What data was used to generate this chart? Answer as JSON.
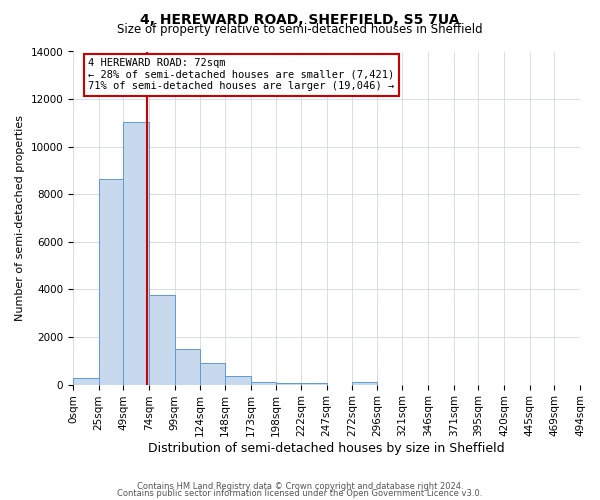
{
  "title": "4, HEREWARD ROAD, SHEFFIELD, S5 7UA",
  "subtitle": "Size of property relative to semi-detached houses in Sheffield",
  "xlabel": "Distribution of semi-detached houses by size in Sheffield",
  "ylabel": "Number of semi-detached properties",
  "footnote1": "Contains HM Land Registry data © Crown copyright and database right 2024.",
  "footnote2": "Contains public sector information licensed under the Open Government Licence v3.0.",
  "bar_color": "#c8d9ed",
  "bar_edge_color": "#5b9bd5",
  "grid_color": "#d0d8e4",
  "background_color": "#ffffff",
  "bin_edges": [
    0,
    25,
    49,
    74,
    99,
    124,
    148,
    173,
    198,
    222,
    247,
    272,
    296,
    321,
    346,
    371,
    395,
    420,
    445,
    469,
    494
  ],
  "bin_labels": [
    "0sqm",
    "25sqm",
    "49sqm",
    "74sqm",
    "99sqm",
    "124sqm",
    "148sqm",
    "173sqm",
    "198sqm",
    "222sqm",
    "247sqm",
    "272sqm",
    "296sqm",
    "321sqm",
    "346sqm",
    "371sqm",
    "395sqm",
    "420sqm",
    "445sqm",
    "469sqm",
    "494sqm"
  ],
  "bar_heights": [
    270,
    8650,
    11050,
    3750,
    1480,
    900,
    350,
    130,
    50,
    70,
    0,
    90,
    0,
    0,
    0,
    0,
    0,
    0,
    0,
    0
  ],
  "ylim": [
    0,
    14000
  ],
  "yticks": [
    0,
    2000,
    4000,
    6000,
    8000,
    10000,
    12000,
    14000
  ],
  "property_line_x": 72,
  "property_line_color": "#cc0000",
  "annotation_text_line1": "4 HEREWARD ROAD: 72sqm",
  "annotation_text_line2": "← 28% of semi-detached houses are smaller (7,421)",
  "annotation_text_line3": "71% of semi-detached houses are larger (19,046) →",
  "annotation_box_color": "#cc0000",
  "annotation_fill": "#ffffff",
  "title_fontsize": 10,
  "subtitle_fontsize": 8.5,
  "ylabel_fontsize": 8,
  "xlabel_fontsize": 9,
  "tick_fontsize": 7.5,
  "annotation_fontsize": 7.5,
  "footnote_fontsize": 6
}
